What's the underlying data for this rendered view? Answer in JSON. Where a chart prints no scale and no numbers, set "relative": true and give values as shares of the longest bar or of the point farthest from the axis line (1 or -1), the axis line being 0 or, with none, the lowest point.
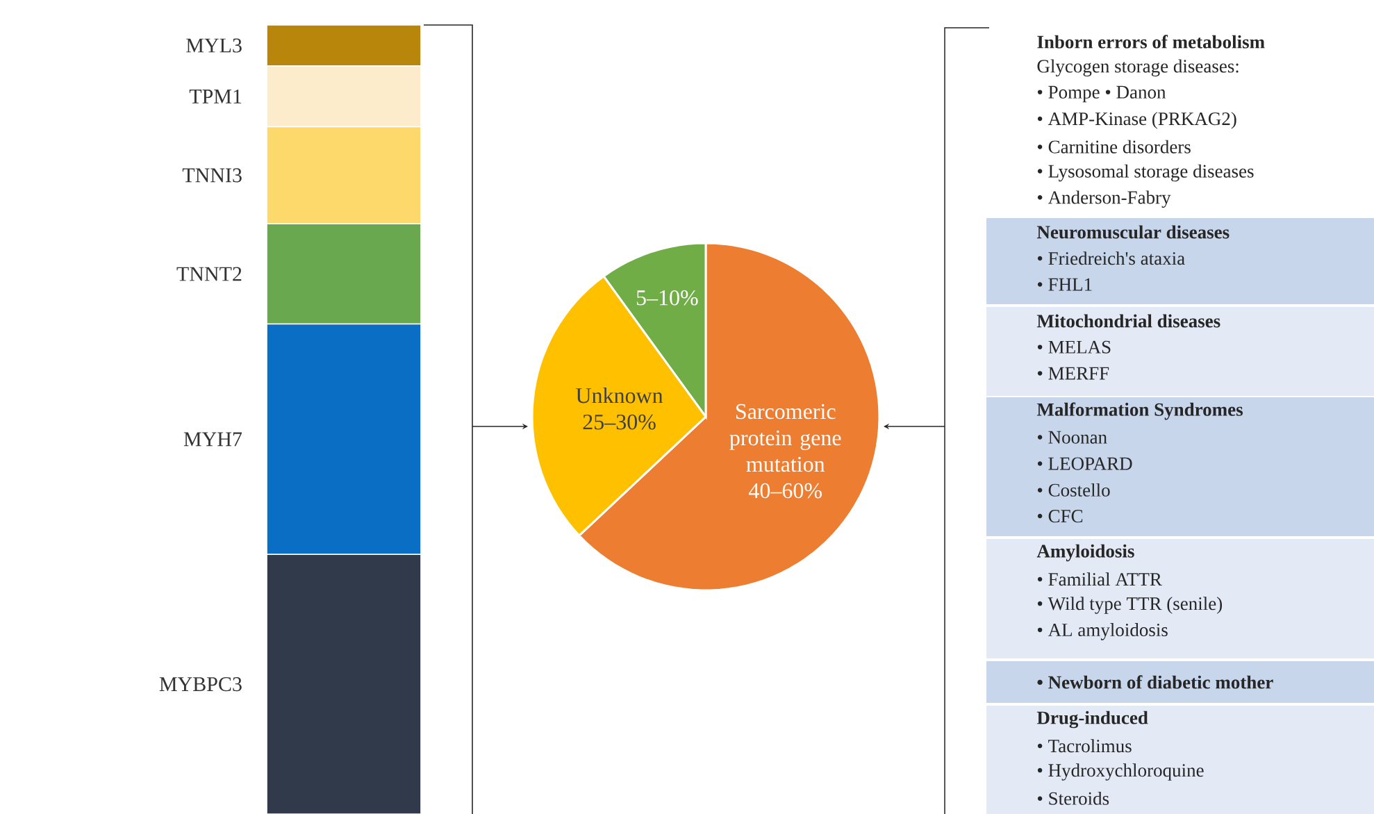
{
  "chart_data": [
    {
      "type": "bar",
      "stacked": true,
      "relative": true,
      "categories": [
        null
      ],
      "series": [
        {
          "name": "MYBPC3",
          "color": "#313a4b",
          "values": [
            0.329
          ]
        },
        {
          "name": "MYH7",
          "color": "#0a6fc4",
          "values": [
            0.292
          ]
        },
        {
          "name": "TNNT2",
          "color": "#6aa84f",
          "values": [
            0.127
          ]
        },
        {
          "name": "TNNI3",
          "color": "#fcd96a",
          "values": [
            0.123
          ]
        },
        {
          "name": "TPM1",
          "color": "#fdeccb",
          "values": [
            0.077
          ]
        },
        {
          "name": "MYL3",
          "color": "#b8860b",
          "values": [
            0.052
          ]
        }
      ]
    },
    {
      "type": "pie",
      "categories": [
        "Sarcomeric protein gene mutation 40–60%",
        "Unknown 25–30%",
        "5–10%"
      ],
      "values": [
        63,
        27,
        10
      ],
      "colors": [
        "#ed7d31",
        "#ffc000",
        "#70ad47"
      ]
    },
    {
      "type": "other",
      "annotations": [
        "Inborn errors of metabolism",
        "Glycogen storage diseases:",
        "• Pompe • Danon",
        "• AMP-Kinase (PRKAG2)",
        "• Carnitine disorders",
        "• Lysosomal storage diseases",
        "• Anderson-Fabry",
        "Neuromuscular diseases",
        "• Friedreich's ataxia",
        "• FHL1",
        "Mitochondrial diseases",
        "• MELAS",
        "• MERFF",
        "Malformation Syndromes",
        "• Noonan",
        "• LEOPARD",
        "• Costello",
        "• CFC",
        "Amyloidosis",
        "• Familial ATTR",
        "• Wild type TTR (senile)",
        "• AL amyloidosis",
        "• Newborn of diabetic mother",
        "Drug-induced",
        "• Tacrolimus",
        "• Hydroxychloroquine",
        "• Steroids"
      ]
    }
  ]
}
